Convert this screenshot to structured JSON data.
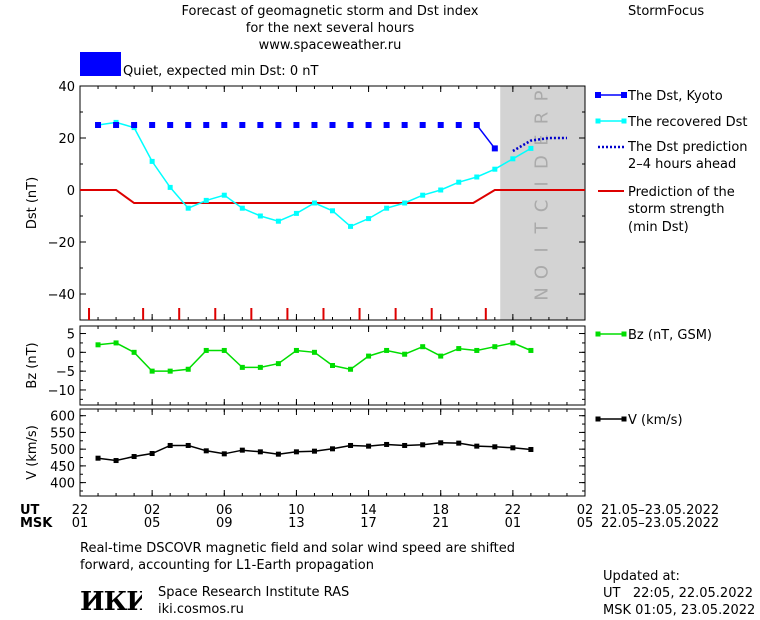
{
  "header": {
    "title_line1": "Forecast of geomagnetic storm and Dst index",
    "title_line2": "for the next several hours",
    "website": "www.spaceweather.ru",
    "brand": "StormFocus"
  },
  "status": {
    "text": "Quiet, expected min Dst: 0 nT",
    "color": "#0000ff"
  },
  "prediction_label": "PREDICTION",
  "legend": {
    "dst_kyoto": "The Dst, Kyoto",
    "recovered_dst": "The recovered Dst",
    "dst_prediction_line1": "The Dst prediction",
    "dst_prediction_line2": "2–4 hours ahead",
    "storm_line1": "Prediction of the",
    "storm_line2": "storm strength",
    "storm_line3": "(min Dst)",
    "bz": "Bz (nT, GSM)",
    "v": "V (km/s)"
  },
  "time_axis": {
    "ut_label": "UT",
    "msk_label": "MSK",
    "ut_ticks": [
      "22",
      "02",
      "06",
      "10",
      "14",
      "18",
      "22",
      "02"
    ],
    "msk_ticks": [
      "01",
      "05",
      "09",
      "13",
      "17",
      "21",
      "01",
      "05"
    ],
    "ut_range": "21.05–23.05.2022",
    "msk_range": "22.05–23.05.2022"
  },
  "footer": {
    "note_line1": "Real-time DSCOVR magnetic field and solar wind speed are shifted",
    "note_line2": "forward, accounting for L1-Earth propagation",
    "institute": "Space Research Institute RAS",
    "institute_site": "iki.cosmos.ru",
    "logo_text": "ИКИ",
    "updated_label": "Updated at:",
    "updated_ut": "UT   22:05, 22.05.2022",
    "updated_msk": "MSK 01:05, 23.05.2022"
  },
  "colors": {
    "dst_kyoto": "#0000ff",
    "recovered": "#00ffff",
    "prediction": "#0000cc",
    "storm": "#dd0000",
    "bz": "#00dd00",
    "v": "#000000",
    "prediction_band": "#d3d3d3"
  },
  "chart_data": [
    {
      "type": "line",
      "ylabel": "Dst (nT)",
      "ylim": [
        -50,
        40
      ],
      "yticks": [
        40,
        20,
        0,
        -20,
        -40
      ],
      "xlim": [
        22,
        50
      ],
      "prediction_start": 45.3,
      "series": [
        {
          "name": "The Dst, Kyoto",
          "x": [
            23,
            24,
            25,
            26,
            27,
            28,
            29,
            30,
            31,
            32,
            33,
            34,
            35,
            36,
            37,
            38,
            39,
            40,
            41,
            42,
            43,
            44,
            45
          ],
          "y": [
            25,
            25,
            25,
            25,
            25,
            25,
            25,
            25,
            25,
            25,
            25,
            25,
            25,
            25,
            25,
            25,
            25,
            25,
            25,
            25,
            25,
            25,
            16
          ]
        },
        {
          "name": "The recovered Dst",
          "x": [
            23,
            24,
            25,
            26,
            27,
            28,
            29,
            30,
            31,
            32,
            33,
            34,
            35,
            36,
            37,
            38,
            39,
            40,
            41,
            42,
            43,
            44,
            45,
            46,
            47
          ],
          "y": [
            25,
            26,
            24,
            11,
            1,
            -7,
            -4,
            -2,
            -7,
            -10,
            -12,
            -9,
            -5,
            -8,
            -14,
            -11,
            -7,
            -5,
            -2,
            0,
            3,
            5,
            8,
            12,
            16
          ]
        },
        {
          "name": "The Dst prediction 2–4 hours ahead",
          "x": [
            46,
            47,
            48,
            49
          ],
          "y": [
            15,
            19,
            20,
            20
          ]
        },
        {
          "name": "Prediction of the storm strength (min Dst)",
          "x": [
            22,
            24,
            25,
            43.8,
            45,
            50
          ],
          "y": [
            0,
            0,
            -5,
            -5,
            0,
            0
          ]
        }
      ],
      "storm_ticks_x": [
        22.5,
        25.5,
        27.5,
        29.5,
        31.5,
        33.5,
        35.5,
        37.5,
        39.5,
        41.5,
        44.5
      ]
    },
    {
      "type": "line",
      "ylabel": "Bz (nT)",
      "ylim": [
        -14,
        7
      ],
      "yticks": [
        5,
        0,
        -5,
        -10
      ],
      "xlim": [
        22,
        50
      ],
      "series": [
        {
          "name": "Bz (nT, GSM)",
          "x": [
            23,
            24,
            25,
            26,
            27,
            28,
            29,
            30,
            31,
            32,
            33,
            34,
            35,
            36,
            37,
            38,
            39,
            40,
            41,
            42,
            43,
            44,
            45,
            46,
            47
          ],
          "y": [
            2,
            2.5,
            0,
            -5,
            -5,
            -4.5,
            0.5,
            0.5,
            -4,
            -4,
            -3,
            0.5,
            0,
            -3.5,
            -4.5,
            -1,
            0.5,
            -0.5,
            1.5,
            -1,
            1,
            0.5,
            1.5,
            2.5,
            0.5
          ]
        }
      ]
    },
    {
      "type": "line",
      "ylabel": "V (km/s)",
      "ylim": [
        360,
        620
      ],
      "yticks": [
        600,
        550,
        500,
        450,
        400
      ],
      "xlim": [
        22,
        50
      ],
      "series": [
        {
          "name": "V (km/s)",
          "x": [
            23,
            24,
            25,
            26,
            27,
            28,
            29,
            30,
            31,
            32,
            33,
            34,
            35,
            36,
            37,
            38,
            39,
            40,
            41,
            42,
            43,
            44,
            45,
            46,
            47
          ],
          "y": [
            473,
            466,
            478,
            487,
            511,
            511,
            495,
            486,
            497,
            492,
            485,
            492,
            494,
            501,
            511,
            509,
            514,
            511,
            513,
            519,
            518,
            509,
            507,
            504,
            499
          ]
        }
      ]
    }
  ]
}
